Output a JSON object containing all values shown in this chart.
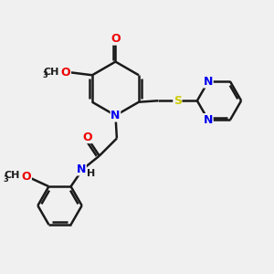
{
  "bg_color": "#f0f0f0",
  "bond_color": "#1a1a1a",
  "bond_width": 1.8,
  "N_color": "#0000ee",
  "O_color": "#ee0000",
  "S_color": "#cccc00",
  "font_size": 9,
  "fig_size": [
    3.0,
    3.0
  ],
  "dpi": 100,
  "xlim": [
    0,
    10
  ],
  "ylim": [
    0,
    10
  ]
}
